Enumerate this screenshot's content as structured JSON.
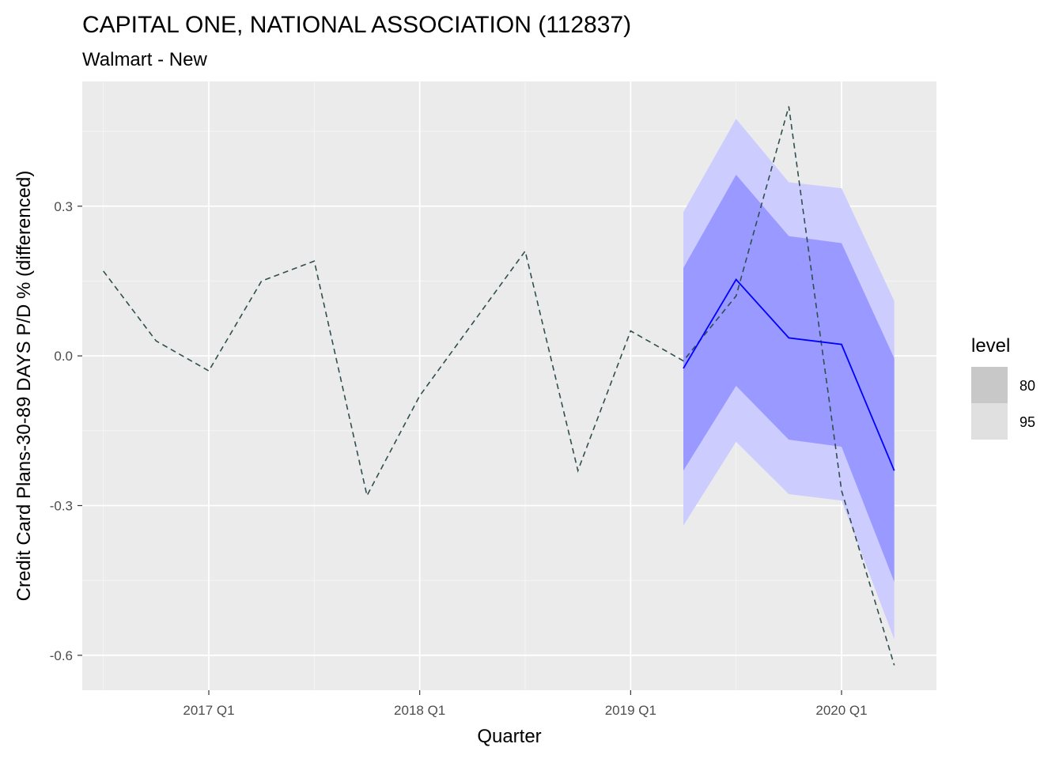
{
  "chart_data": {
    "type": "line",
    "title": "CAPITAL ONE, NATIONAL ASSOCIATION (112837)",
    "subtitle": "Walmart - New",
    "xlabel": "Quarter",
    "ylabel": "Credit Card Plans-30-89 DAYS P/D % (differenced)",
    "xlim": [
      2016.4,
      2020.45
    ],
    "ylim": [
      -0.67,
      0.55
    ],
    "x_ticks": [
      {
        "value": 2017.0,
        "label": "2017 Q1"
      },
      {
        "value": 2018.0,
        "label": "2018 Q1"
      },
      {
        "value": 2019.0,
        "label": "2019 Q1"
      },
      {
        "value": 2020.0,
        "label": "2020 Q1"
      }
    ],
    "x_minor_ticks": [
      2016.5,
      2017.5,
      2018.5,
      2019.5
    ],
    "y_ticks": [
      {
        "value": -0.6,
        "label": "-0.6"
      },
      {
        "value": -0.3,
        "label": "-0.3"
      },
      {
        "value": 0.0,
        "label": "0.0"
      },
      {
        "value": 0.3,
        "label": "0.3"
      }
    ],
    "y_minor_ticks": [
      -0.45,
      -0.15,
      0.15,
      0.45
    ],
    "grid": true,
    "series": [
      {
        "role": "actual",
        "style": "dashed",
        "color": "#2f4f4f",
        "x": [
          2016.5,
          2016.75,
          2017.0,
          2017.25,
          2017.5,
          2017.75,
          2018.0,
          2018.25,
          2018.5,
          2018.75,
          2019.0,
          2019.25,
          2019.5,
          2019.75,
          2020.0,
          2020.25
        ],
        "y": [
          0.17,
          0.03,
          -0.03,
          0.15,
          0.19,
          -0.28,
          -0.08,
          0.065,
          0.21,
          -0.23,
          0.05,
          -0.01,
          0.12,
          0.5,
          -0.27,
          -0.62
        ]
      },
      {
        "role": "forecast",
        "style": "solid",
        "color": "#0000ff",
        "x": [
          2019.25,
          2019.5,
          2019.75,
          2020.0,
          2020.25
        ],
        "y": [
          -0.025,
          0.153,
          0.036,
          0.023,
          -0.23
        ]
      }
    ],
    "intervals": [
      {
        "level": "95",
        "color": "#ccccff",
        "x": [
          2019.25,
          2019.5,
          2019.75,
          2020.0,
          2020.25
        ],
        "lower": [
          -0.34,
          -0.172,
          -0.277,
          -0.29,
          -0.568
        ],
        "upper": [
          0.288,
          0.475,
          0.348,
          0.336,
          0.11
        ]
      },
      {
        "level": "80",
        "color": "#9999ff",
        "x": [
          2019.25,
          2019.5,
          2019.75,
          2020.0,
          2020.25
        ],
        "lower": [
          -0.23,
          -0.06,
          -0.168,
          -0.182,
          -0.453
        ],
        "upper": [
          0.176,
          0.363,
          0.24,
          0.226,
          -0.005
        ]
      }
    ],
    "legend": {
      "title": "level",
      "position": "right",
      "entries": [
        {
          "label": "80",
          "color": "#c8c8c8"
        },
        {
          "label": "95",
          "color": "#e0e0e0"
        }
      ]
    },
    "colors": {
      "panel_background": "#ebebeb",
      "grid_major": "#ffffff",
      "grid_minor": "#f5f5f5"
    }
  }
}
